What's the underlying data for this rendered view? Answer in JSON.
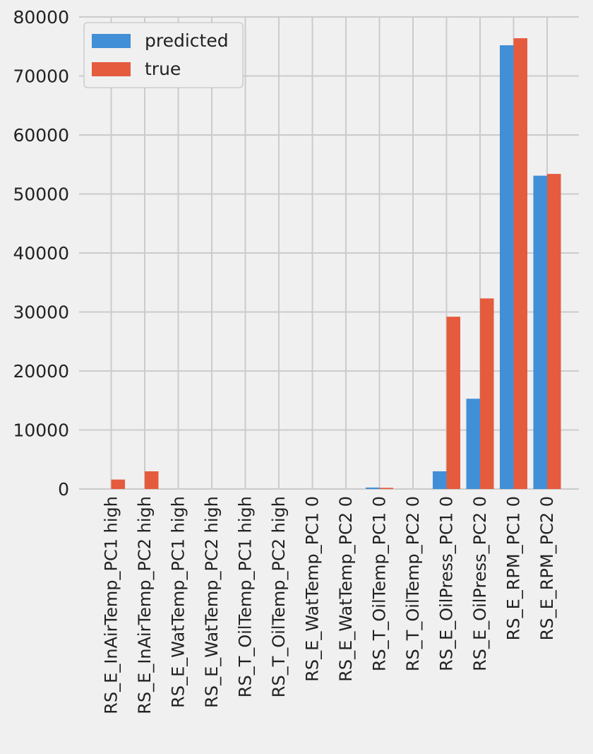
{
  "chart_data": {
    "type": "bar",
    "title": "",
    "xlabel": "",
    "ylabel": "",
    "ylim": [
      0,
      80000
    ],
    "yticks": [
      0,
      10000,
      20000,
      30000,
      40000,
      50000,
      60000,
      70000,
      80000
    ],
    "grid": true,
    "legend_position": "top-left",
    "categories": [
      "RS_E_InAirTemp_PC1 high",
      "RS_E_InAirTemp_PC2 high",
      "RS_E_WatTemp_PC1 high",
      "RS_E_WatTemp_PC2 high",
      "RS_T_OilTemp_PC1 high",
      "RS_T_OilTemp_PC2 high",
      "RS_E_WatTemp_PC1 0",
      "RS_E_WatTemp_PC2 0",
      "RS_T_OilTemp_PC1 0",
      "RS_T_OilTemp_PC2 0",
      "RS_E_OilPress_PC1 0",
      "RS_E_OilPress_PC2 0",
      "RS_E_RPM_PC1 0",
      "RS_E_RPM_PC2 0"
    ],
    "series": [
      {
        "name": "predicted",
        "color": "#418fd6",
        "values": [
          0,
          0,
          0,
          0,
          0,
          0,
          0,
          0,
          250,
          0,
          3000,
          15300,
          75200,
          53100
        ]
      },
      {
        "name": "true",
        "color": "#e55b3e",
        "values": [
          1600,
          3000,
          0,
          0,
          0,
          0,
          0,
          0,
          200,
          0,
          29200,
          32300,
          76400,
          53400
        ]
      }
    ]
  }
}
